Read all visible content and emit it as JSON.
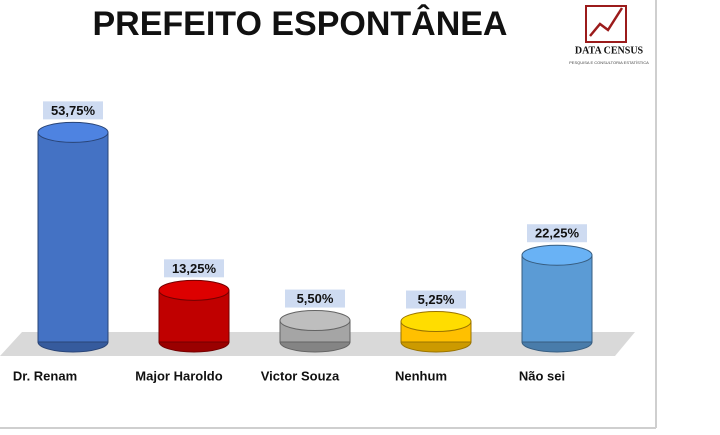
{
  "chart_data": {
    "type": "bar",
    "title": "PREFEITO ESPONTÂNEA",
    "categories": [
      "Dr. Renam",
      "Major Haroldo",
      "Victor Souza",
      "Nenhum",
      "Não sei"
    ],
    "values": [
      53.75,
      13.25,
      5.5,
      5.25,
      22.25
    ],
    "value_labels": [
      "53,75%",
      "13,25%",
      "5,50%",
      "5,25%",
      "22,25%"
    ],
    "colors": [
      "#4472c4",
      "#c00000",
      "#a5a5a5",
      "#ffc000",
      "#5b9bd5"
    ]
  },
  "logo": {
    "name": "DATA CENSUS",
    "tagline": "PESQUISA E CONSULTORIA ESTATÍSTICA"
  }
}
